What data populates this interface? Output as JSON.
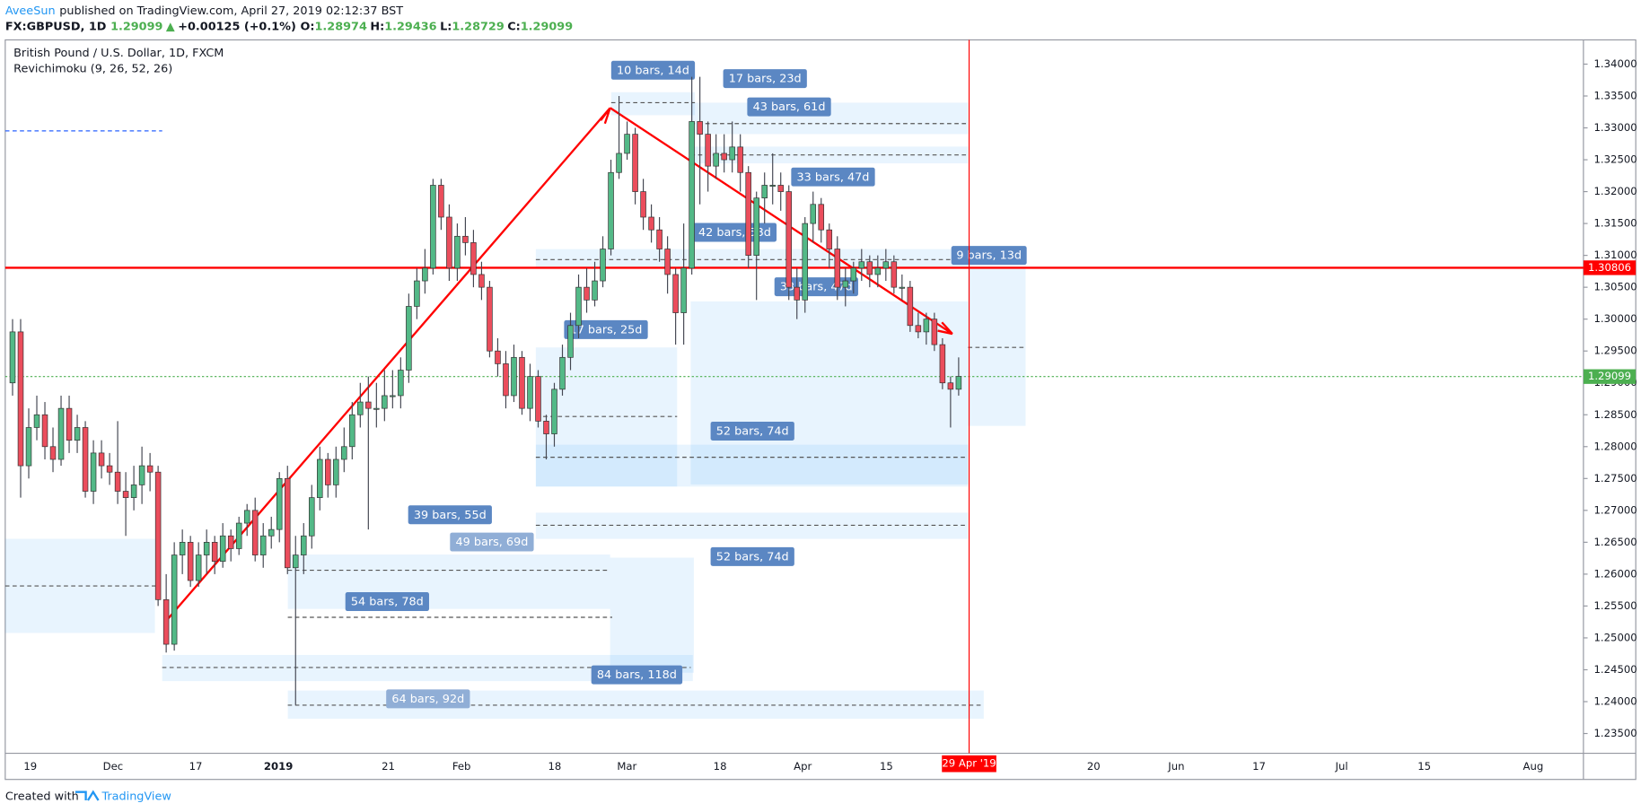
{
  "header": {
    "author": "AveeSun",
    "published": "published on TradingView.com, April 27, 2019 02:12:37 BST",
    "symbol": "FX:GBPUSD, 1D",
    "last": "1.29099",
    "arrow": "▲",
    "change": "+0.00125 (+0.1%)",
    "o_label": "O:",
    "o": "1.28974",
    "h_label": "H:",
    "h": "1.29436",
    "l_label": "L:",
    "l": "1.28729",
    "c_label": "C:",
    "c": "1.29099"
  },
  "footer": {
    "created": "Created with",
    "brand": "TradingView"
  },
  "chart_data": {
    "type": "candlestick",
    "title": "British Pound / U.S. Dollar, 1D, FXCM",
    "subtitle": "Revichimoku (9, 26, 52, 26)",
    "up_color": "#53b987",
    "down_color": "#eb4d5c",
    "wick_color": "#434651",
    "ylim": [
      1.2319,
      1.3438
    ],
    "yticks": [
      {
        "value": 1.235,
        "label": "1.23500"
      },
      {
        "value": 1.24,
        "label": "1.24000"
      },
      {
        "value": 1.245,
        "label": "1.24500"
      },
      {
        "value": 1.25,
        "label": "1.25000"
      },
      {
        "value": 1.255,
        "label": "1.25500"
      },
      {
        "value": 1.26,
        "label": "1.26000"
      },
      {
        "value": 1.265,
        "label": "1.26500"
      },
      {
        "value": 1.27,
        "label": "1.27000"
      },
      {
        "value": 1.275,
        "label": "1.27500"
      },
      {
        "value": 1.28,
        "label": "1.28000"
      },
      {
        "value": 1.285,
        "label": "1.28500"
      },
      {
        "value": 1.29,
        "label": "1.29000"
      },
      {
        "value": 1.295,
        "label": "1.29500"
      },
      {
        "value": 1.3,
        "label": "1.30000"
      },
      {
        "value": 1.305,
        "label": "1.30500"
      },
      {
        "value": 1.31,
        "label": "1.31000"
      },
      {
        "value": 1.315,
        "label": "1.31500"
      },
      {
        "value": 1.32,
        "label": "1.32000"
      },
      {
        "value": 1.325,
        "label": "1.32500"
      },
      {
        "value": 1.33,
        "label": "1.33000"
      },
      {
        "value": 1.335,
        "label": "1.33500"
      },
      {
        "value": 1.34,
        "label": "1.34000"
      }
    ],
    "xticks": [
      "19",
      "Dec",
      "17",
      "2019",
      "21",
      "Feb",
      "18",
      "Mar",
      "18",
      "Apr",
      "15",
      "20",
      "Jun",
      "17",
      "Jul",
      "15",
      "Aug"
    ],
    "date_marker": "29 Apr '19",
    "price_lines": [
      {
        "value": 1.30806,
        "label": "1.30806",
        "color": "#ff0000"
      },
      {
        "value": 1.29099,
        "label": "1.29099",
        "color": "#4caf50"
      }
    ],
    "annotations": [
      "10 bars, 14d",
      "17 bars, 23d",
      "43 bars, 61d",
      "33 bars, 47d",
      "42 bars, 58d",
      "9 bars, 13d",
      "33 bars, 47d",
      "17 bars, 25d",
      "52 bars, 74d",
      "39 bars, 55d",
      "49 bars, 69d",
      "52 bars, 74d",
      "54 bars, 78d",
      "84 bars, 118d",
      "64 bars, 92d"
    ],
    "ohlc": [
      [
        1.29,
        1.3,
        1.288,
        1.298
      ],
      [
        1.298,
        1.3,
        1.272,
        1.277
      ],
      [
        1.277,
        1.286,
        1.275,
        1.283
      ],
      [
        1.283,
        1.288,
        1.281,
        1.285
      ],
      [
        1.285,
        1.287,
        1.278,
        1.28
      ],
      [
        1.28,
        1.283,
        1.276,
        1.278
      ],
      [
        1.278,
        1.288,
        1.277,
        1.286
      ],
      [
        1.286,
        1.288,
        1.279,
        1.281
      ],
      [
        1.281,
        1.285,
        1.279,
        1.283
      ],
      [
        1.283,
        1.284,
        1.272,
        1.273
      ],
      [
        1.273,
        1.281,
        1.271,
        1.279
      ],
      [
        1.279,
        1.281,
        1.275,
        1.277
      ],
      [
        1.277,
        1.279,
        1.274,
        1.276
      ],
      [
        1.276,
        1.284,
        1.271,
        1.273
      ],
      [
        1.273,
        1.276,
        1.266,
        1.272
      ],
      [
        1.272,
        1.277,
        1.27,
        1.274
      ],
      [
        1.274,
        1.28,
        1.271,
        1.277
      ],
      [
        1.277,
        1.279,
        1.273,
        1.276
      ],
      [
        1.276,
        1.277,
        1.255,
        1.256
      ],
      [
        1.256,
        1.26,
        1.2477,
        1.249
      ],
      [
        1.249,
        1.265,
        1.248,
        1.263
      ],
      [
        1.263,
        1.267,
        1.26,
        1.265
      ],
      [
        1.265,
        1.266,
        1.258,
        1.259
      ],
      [
        1.259,
        1.265,
        1.258,
        1.263
      ],
      [
        1.263,
        1.267,
        1.26,
        1.265
      ],
      [
        1.265,
        1.266,
        1.26,
        1.262
      ],
      [
        1.262,
        1.268,
        1.261,
        1.266
      ],
      [
        1.266,
        1.267,
        1.262,
        1.264
      ],
      [
        1.264,
        1.269,
        1.263,
        1.268
      ],
      [
        1.268,
        1.271,
        1.266,
        1.27
      ],
      [
        1.27,
        1.272,
        1.262,
        1.263
      ],
      [
        1.263,
        1.268,
        1.261,
        1.266
      ],
      [
        1.266,
        1.269,
        1.264,
        1.267
      ],
      [
        1.267,
        1.276,
        1.265,
        1.275
      ],
      [
        1.275,
        1.277,
        1.26,
        1.261
      ],
      [
        1.261,
        1.266,
        1.2395,
        1.263
      ],
      [
        1.263,
        1.268,
        1.26,
        1.266
      ],
      [
        1.266,
        1.274,
        1.264,
        1.272
      ],
      [
        1.272,
        1.28,
        1.27,
        1.278
      ],
      [
        1.278,
        1.279,
        1.272,
        1.274
      ],
      [
        1.274,
        1.28,
        1.272,
        1.278
      ],
      [
        1.278,
        1.283,
        1.276,
        1.28
      ],
      [
        1.28,
        1.287,
        1.278,
        1.285
      ],
      [
        1.285,
        1.29,
        1.283,
        1.287
      ],
      [
        1.287,
        1.291,
        1.267,
        1.286
      ],
      [
        1.286,
        1.29,
        1.283,
        1.286
      ],
      [
        1.286,
        1.292,
        1.284,
        1.288
      ],
      [
        1.288,
        1.292,
        1.286,
        1.288
      ],
      [
        1.288,
        1.294,
        1.286,
        1.292
      ],
      [
        1.292,
        1.304,
        1.29,
        1.302
      ],
      [
        1.302,
        1.308,
        1.3,
        1.306
      ],
      [
        1.306,
        1.311,
        1.304,
        1.308
      ],
      [
        1.308,
        1.322,
        1.307,
        1.321
      ],
      [
        1.321,
        1.322,
        1.314,
        1.316
      ],
      [
        1.316,
        1.318,
        1.306,
        1.308
      ],
      [
        1.308,
        1.315,
        1.306,
        1.313
      ],
      [
        1.313,
        1.316,
        1.31,
        1.312
      ],
      [
        1.312,
        1.314,
        1.305,
        1.307
      ],
      [
        1.307,
        1.309,
        1.303,
        1.305
      ],
      [
        1.305,
        1.306,
        1.294,
        1.295
      ],
      [
        1.295,
        1.297,
        1.291,
        1.293
      ],
      [
        1.293,
        1.295,
        1.286,
        1.288
      ],
      [
        1.288,
        1.296,
        1.287,
        1.294
      ],
      [
        1.294,
        1.295,
        1.285,
        1.286
      ],
      [
        1.286,
        1.293,
        1.284,
        1.291
      ],
      [
        1.291,
        1.292,
        1.283,
        1.284
      ],
      [
        1.284,
        1.285,
        1.278,
        1.282
      ],
      [
        1.282,
        1.29,
        1.28,
        1.289
      ],
      [
        1.289,
        1.296,
        1.288,
        1.294
      ],
      [
        1.294,
        1.301,
        1.292,
        1.299
      ],
      [
        1.299,
        1.307,
        1.297,
        1.305
      ],
      [
        1.305,
        1.308,
        1.301,
        1.303
      ],
      [
        1.303,
        1.309,
        1.302,
        1.306
      ],
      [
        1.306,
        1.313,
        1.305,
        1.311
      ],
      [
        1.311,
        1.325,
        1.31,
        1.323
      ],
      [
        1.323,
        1.335,
        1.322,
        1.326
      ],
      [
        1.326,
        1.331,
        1.325,
        1.329
      ],
      [
        1.329,
        1.33,
        1.318,
        1.32
      ],
      [
        1.32,
        1.322,
        1.314,
        1.316
      ],
      [
        1.316,
        1.318,
        1.312,
        1.314
      ],
      [
        1.314,
        1.316,
        1.309,
        1.311
      ],
      [
        1.311,
        1.313,
        1.304,
        1.307
      ],
      [
        1.307,
        1.308,
        1.296,
        1.301
      ],
      [
        1.301,
        1.315,
        1.296,
        1.308
      ],
      [
        1.308,
        1.338,
        1.307,
        1.331
      ],
      [
        1.331,
        1.338,
        1.318,
        1.329
      ],
      [
        1.329,
        1.331,
        1.32,
        1.324
      ],
      [
        1.324,
        1.329,
        1.322,
        1.326
      ],
      [
        1.326,
        1.329,
        1.323,
        1.325
      ],
      [
        1.325,
        1.331,
        1.323,
        1.327
      ],
      [
        1.327,
        1.329,
        1.32,
        1.323
      ],
      [
        1.323,
        1.324,
        1.308,
        1.31
      ],
      [
        1.31,
        1.32,
        1.303,
        1.319
      ],
      [
        1.319,
        1.323,
        1.315,
        1.321
      ],
      [
        1.321,
        1.326,
        1.318,
        1.321
      ],
      [
        1.321,
        1.323,
        1.317,
        1.32
      ],
      [
        1.32,
        1.321,
        1.303,
        1.305
      ],
      [
        1.305,
        1.308,
        1.3,
        1.303
      ],
      [
        1.303,
        1.316,
        1.301,
        1.315
      ],
      [
        1.315,
        1.32,
        1.312,
        1.318
      ],
      [
        1.318,
        1.319,
        1.312,
        1.314
      ],
      [
        1.314,
        1.315,
        1.308,
        1.311
      ],
      [
        1.311,
        1.313,
        1.303,
        1.305
      ],
      [
        1.305,
        1.308,
        1.302,
        1.306
      ],
      [
        1.306,
        1.309,
        1.304,
        1.308
      ],
      [
        1.308,
        1.311,
        1.306,
        1.309
      ],
      [
        1.309,
        1.31,
        1.305,
        1.307
      ],
      [
        1.307,
        1.31,
        1.305,
        1.308
      ],
      [
        1.308,
        1.311,
        1.306,
        1.309
      ],
      [
        1.309,
        1.31,
        1.304,
        1.305
      ],
      [
        1.305,
        1.307,
        1.303,
        1.305
      ],
      [
        1.305,
        1.306,
        1.298,
        1.299
      ],
      [
        1.299,
        1.301,
        1.297,
        1.298
      ],
      [
        1.298,
        1.301,
        1.296,
        1.3
      ],
      [
        1.3,
        1.301,
        1.295,
        1.296
      ],
      [
        1.296,
        1.297,
        1.289,
        1.29
      ],
      [
        1.29,
        1.291,
        1.283,
        1.289
      ],
      [
        1.289,
        1.294,
        1.288,
        1.291
      ]
    ]
  }
}
